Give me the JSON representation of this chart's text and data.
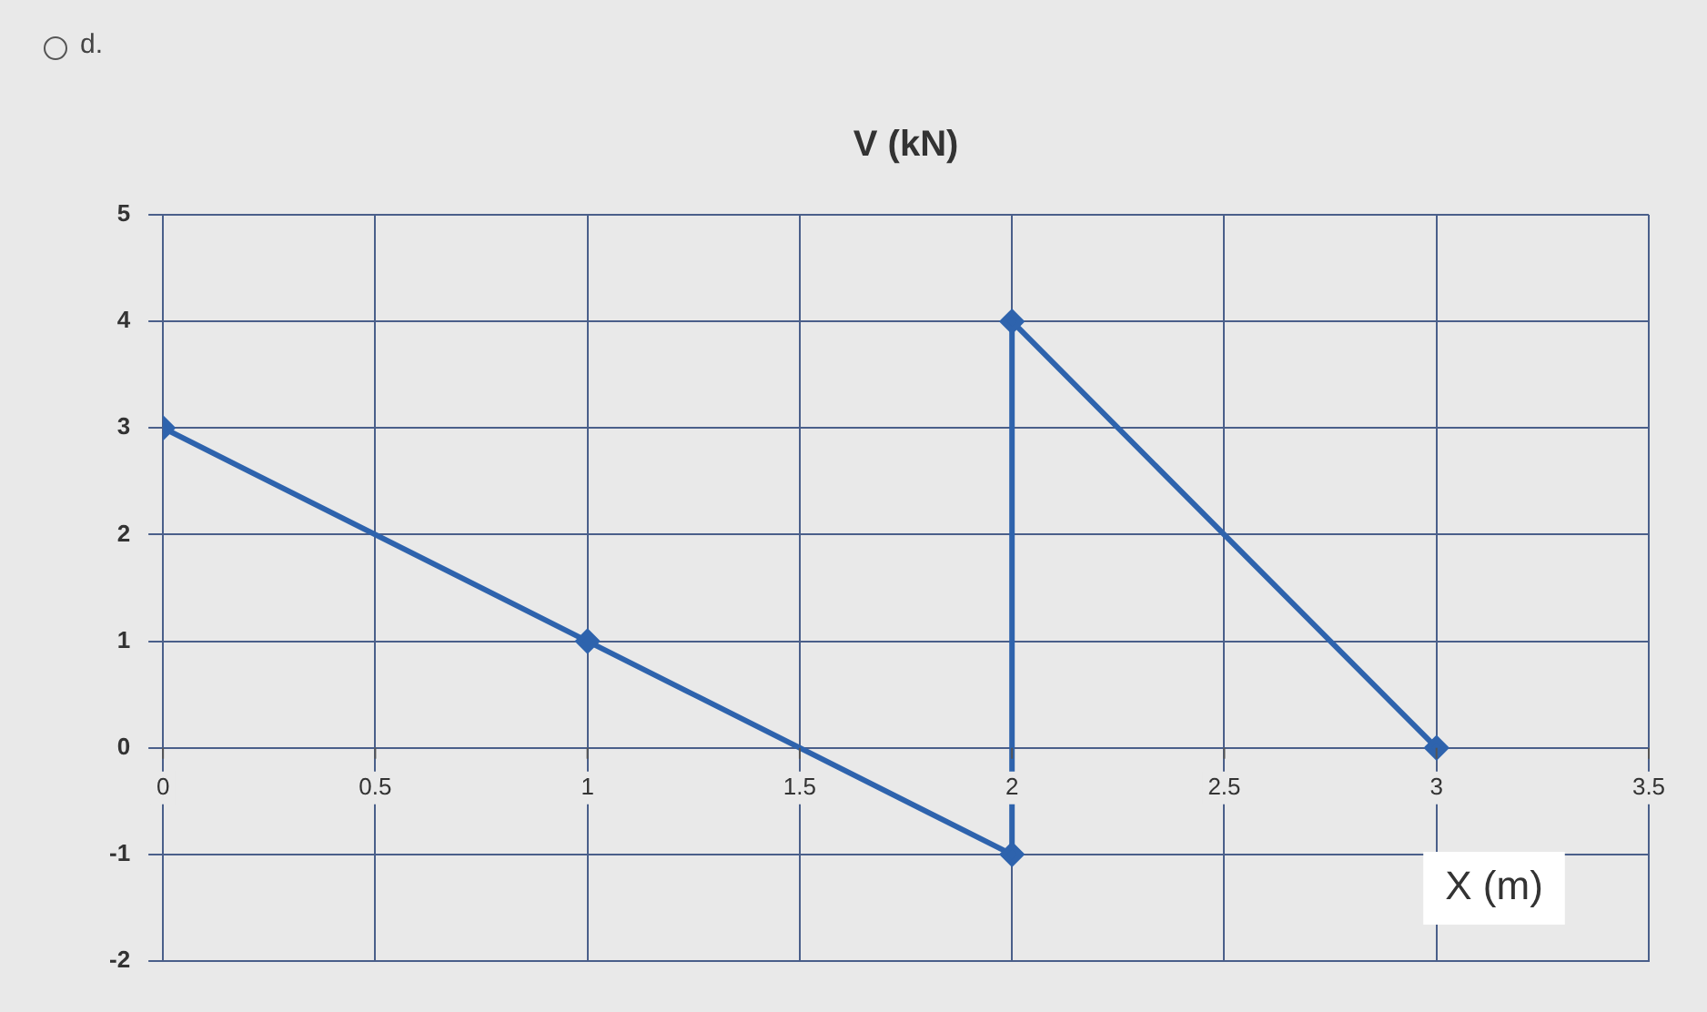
{
  "chart_data": {
    "type": "line",
    "title": "V (kN)",
    "xlabel": "X (m)",
    "annotations": [
      "d."
    ],
    "x": [
      0,
      1,
      2,
      2,
      3
    ],
    "series": [
      {
        "color": "#2e63ad",
        "values": [
          3,
          1,
          -1,
          4,
          0
        ]
      }
    ],
    "xlim": [
      0,
      3.5
    ],
    "xticks": [
      0,
      0.5,
      1,
      1.5,
      2,
      2.5,
      3,
      3.5
    ],
    "ylim": [
      -2,
      5
    ],
    "yticks": [
      -2,
      -1,
      0,
      1,
      2,
      3,
      4,
      5
    ],
    "grid": true,
    "legend": false,
    "marker": "diamond",
    "line_style": "solid"
  }
}
